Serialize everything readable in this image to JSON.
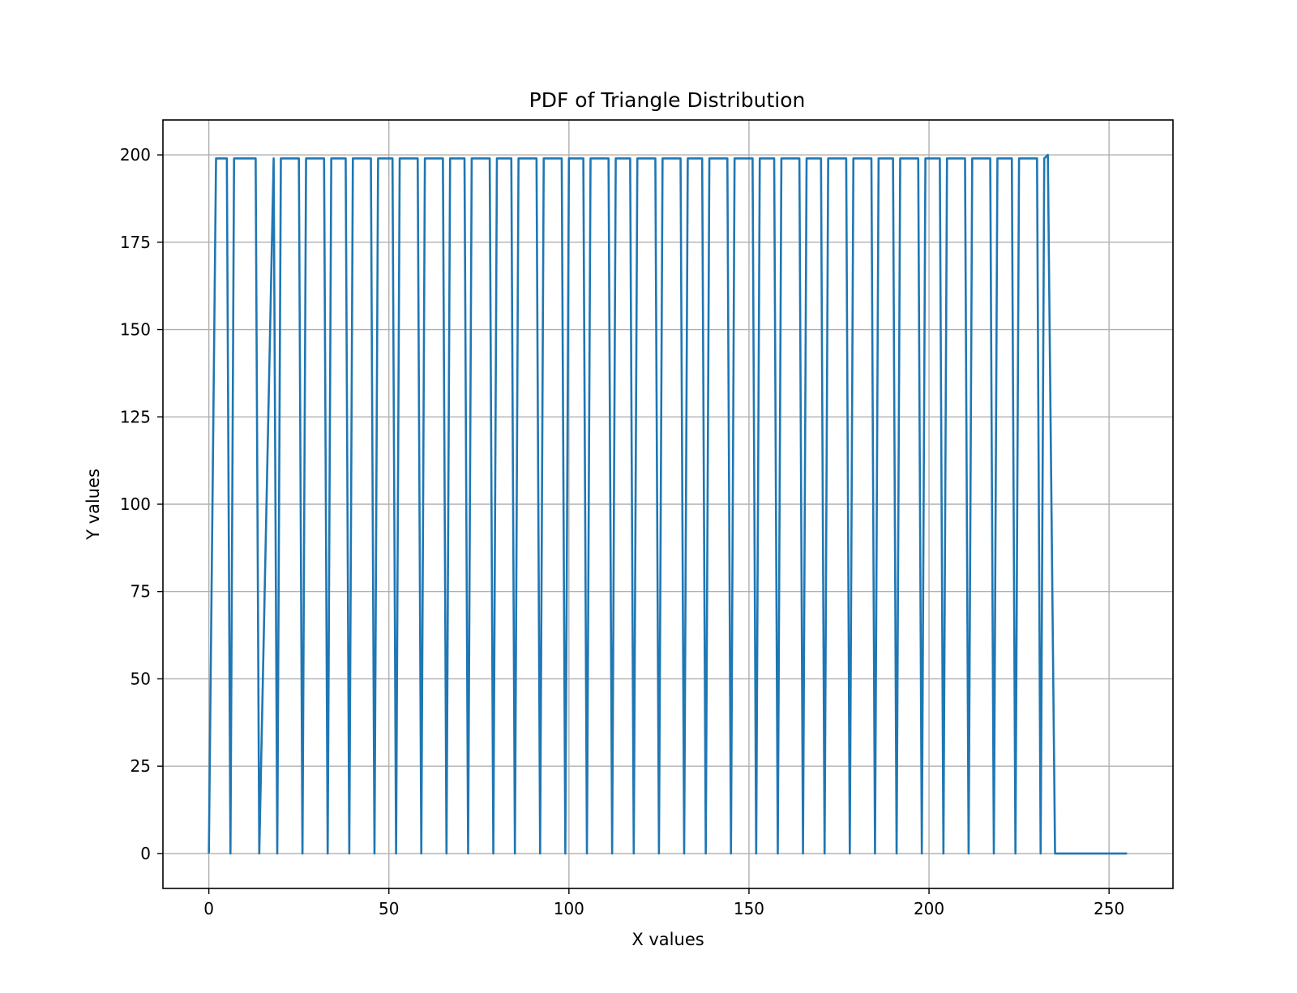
{
  "chart_data": {
    "type": "line",
    "title": "PDF of Triangle Distribution",
    "xlabel": "X values",
    "ylabel": "Y values",
    "xlim": [
      -12.75,
      267.75
    ],
    "ylim": [
      -10,
      210
    ],
    "xticks": [
      0,
      50,
      100,
      150,
      200,
      250
    ],
    "yticks": [
      0,
      25,
      50,
      75,
      100,
      125,
      150,
      175,
      200
    ],
    "grid": true,
    "line_color": "#1f77b4",
    "series": [
      {
        "x": [
          0,
          2,
          5,
          6,
          7,
          10,
          13,
          14,
          18,
          19,
          20,
          25,
          26,
          27,
          32,
          33,
          34,
          38,
          39,
          40,
          45,
          46,
          47,
          51,
          52,
          53,
          58,
          59,
          60,
          65,
          66,
          67,
          71,
          72,
          73,
          78,
          79,
          80,
          84,
          85,
          86,
          91,
          92,
          93,
          98,
          99,
          100,
          104,
          105,
          106,
          111,
          112,
          113,
          117,
          118,
          119,
          124,
          125,
          126,
          131,
          132,
          133,
          137,
          138,
          139,
          144,
          145,
          146,
          151,
          152,
          153,
          157,
          158,
          159,
          164,
          165,
          166,
          170,
          171,
          172,
          177,
          178,
          179,
          184,
          185,
          186,
          190,
          191,
          192,
          197,
          198,
          199,
          203,
          204,
          205,
          210,
          211,
          212,
          217,
          218,
          219,
          223,
          224,
          225,
          230,
          231,
          232,
          233,
          235,
          255
        ],
        "y": [
          0,
          199,
          199,
          0,
          199,
          199,
          199,
          0,
          199,
          0,
          199,
          199,
          0,
          199,
          199,
          0,
          199,
          199,
          0,
          199,
          199,
          0,
          199,
          199,
          0,
          199,
          199,
          0,
          199,
          199,
          0,
          199,
          199,
          0,
          199,
          199,
          0,
          199,
          199,
          0,
          199,
          199,
          0,
          199,
          199,
          0,
          199,
          199,
          0,
          199,
          199,
          0,
          199,
          199,
          0,
          199,
          199,
          0,
          199,
          199,
          0,
          199,
          199,
          0,
          199,
          199,
          0,
          199,
          199,
          0,
          199,
          199,
          0,
          199,
          199,
          0,
          199,
          199,
          0,
          199,
          199,
          0,
          199,
          199,
          0,
          199,
          199,
          0,
          199,
          199,
          0,
          199,
          199,
          0,
          199,
          199,
          0,
          199,
          199,
          0,
          199,
          199,
          0,
          199,
          199,
          0,
          199,
          200,
          0,
          0
        ]
      }
    ]
  }
}
